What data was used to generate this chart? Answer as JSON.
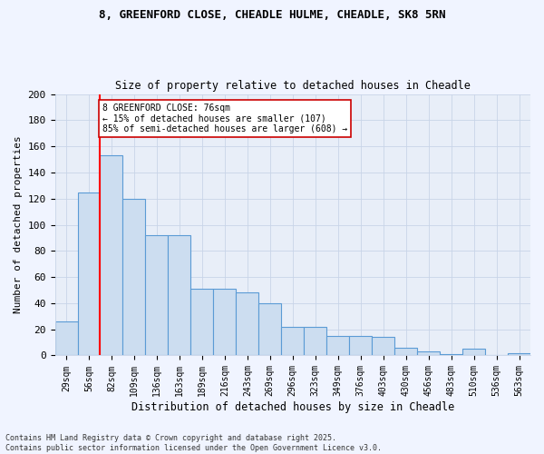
{
  "title_line1": "8, GREENFORD CLOSE, CHEADLE HULME, CHEADLE, SK8 5RN",
  "title_line2": "Size of property relative to detached houses in Cheadle",
  "xlabel": "Distribution of detached houses by size in Cheadle",
  "ylabel": "Number of detached properties",
  "categories": [
    "29sqm",
    "56sqm",
    "82sqm",
    "109sqm",
    "136sqm",
    "163sqm",
    "189sqm",
    "216sqm",
    "243sqm",
    "269sqm",
    "296sqm",
    "323sqm",
    "349sqm",
    "376sqm",
    "403sqm",
    "430sqm",
    "456sqm",
    "483sqm",
    "510sqm",
    "536sqm",
    "563sqm"
  ],
  "values": [
    26,
    125,
    153,
    120,
    92,
    92,
    51,
    51,
    48,
    40,
    22,
    22,
    15,
    15,
    14,
    6,
    3,
    1,
    5,
    0,
    2
  ],
  "bar_color": "#ccddf0",
  "bar_edge_color": "#5b9bd5",
  "red_line_x": 1.5,
  "annotation_text": "8 GREENFORD CLOSE: 76sqm\n← 15% of detached houses are smaller (107)\n85% of semi-detached houses are larger (608) →",
  "annotation_box_color": "#ffffff",
  "annotation_box_edge": "#cc0000",
  "ylim": [
    0,
    200
  ],
  "yticks": [
    0,
    20,
    40,
    60,
    80,
    100,
    120,
    140,
    160,
    180,
    200
  ],
  "footnote": "Contains HM Land Registry data © Crown copyright and database right 2025.\nContains public sector information licensed under the Open Government Licence v3.0.",
  "bg_color": "#f0f4ff",
  "plot_bg_color": "#e8eef8",
  "grid_color": "#c8d4e8"
}
